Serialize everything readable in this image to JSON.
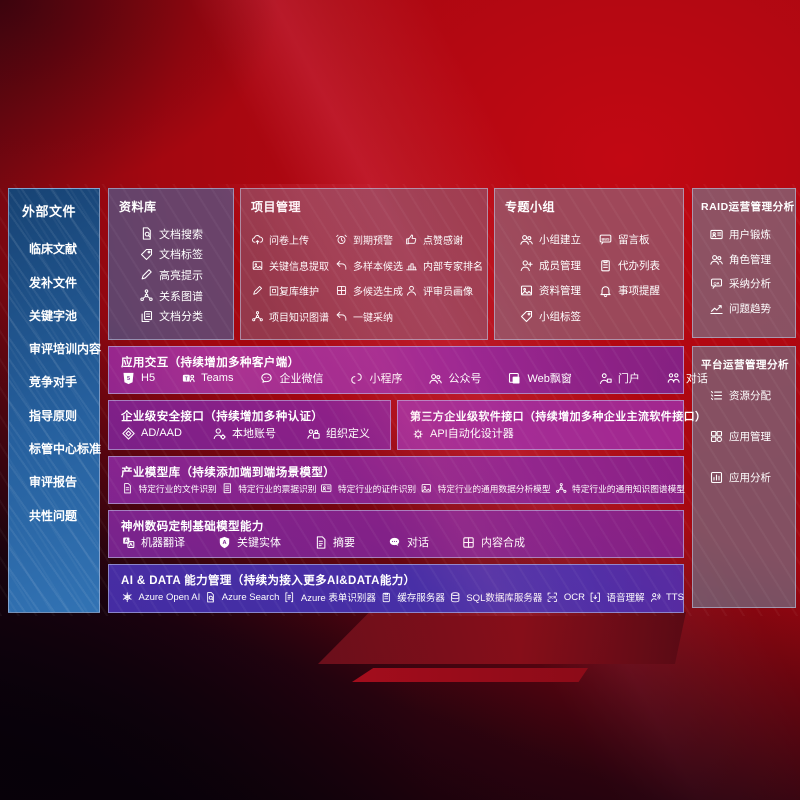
{
  "colors": {
    "screen_red": "#b5060f",
    "sidebar_blue": "#26609e",
    "repo_blue": "#3e70ac",
    "glass_gray": "#7d8296",
    "row_purple": "#8a2f99",
    "aidata_indigo": "#4a3198",
    "text": "#ffffff"
  },
  "sidebar": {
    "title": "外部文件",
    "items": [
      "临床文献",
      "发补文件",
      "关键字池",
      "审评培训内容",
      "竞争对手",
      "指导原则",
      "标管中心标准",
      "审评报告",
      "共性问题"
    ]
  },
  "panels": {
    "repository": {
      "title": "资料库",
      "items": [
        {
          "icon": "doc-search-icon",
          "label": "文档搜索"
        },
        {
          "icon": "tag-icon",
          "label": "文档标签"
        },
        {
          "icon": "pencil-icon",
          "label": "高亮提示"
        },
        {
          "icon": "knowledge-graph-icon",
          "label": "关系图谱"
        },
        {
          "icon": "doc-copy-icon",
          "label": "文档分类"
        }
      ]
    },
    "project": {
      "title": "项目管理",
      "items": [
        {
          "icon": "cloud-upload-icon",
          "label": "问卷上传"
        },
        {
          "icon": "alarm-icon",
          "label": "到期预警"
        },
        {
          "icon": "thumb-up-icon",
          "label": "点赞感谢"
        },
        {
          "icon": "photo-icon",
          "label": "关键信息提取"
        },
        {
          "icon": "reply-arrow-icon",
          "label": "多样本候选"
        },
        {
          "icon": "podium-icon",
          "label": "内部专家排名"
        },
        {
          "icon": "pencil-icon",
          "label": "回复库维护"
        },
        {
          "icon": "content-grid-icon",
          "label": "多候选生成"
        },
        {
          "icon": "person-icon",
          "label": "评审员画像"
        },
        {
          "icon": "knowledge-graph-icon",
          "label": "项目知识图谱"
        },
        {
          "icon": "reply-arrow-icon",
          "label": "一键采纳"
        }
      ]
    },
    "group": {
      "title": "专题小组",
      "items": [
        {
          "icon": "people-icon",
          "label": "小组建立"
        },
        {
          "icon": "bbs-icon",
          "label": "留言板"
        },
        {
          "icon": "person-add-icon",
          "label": "成员管理"
        },
        {
          "icon": "clipboard-icon",
          "label": "代办列表"
        },
        {
          "icon": "photo-icon",
          "label": "资料管理"
        },
        {
          "icon": "bell-icon",
          "label": "事项提醒"
        },
        {
          "icon": "tag-icon",
          "label": "小组标签"
        }
      ]
    },
    "raid": {
      "title": "RAID运营管理分析",
      "items": [
        {
          "icon": "id-card-icon",
          "label": "用户锻炼"
        },
        {
          "icon": "people-icon",
          "label": "角色管理"
        },
        {
          "icon": "qa-chat-icon",
          "label": "采纳分析"
        },
        {
          "icon": "trend-chart-icon",
          "label": "问题趋势"
        }
      ]
    },
    "platform": {
      "title": "平台运营管理分析",
      "items": [
        {
          "icon": "list-icon",
          "label": "资源分配"
        },
        {
          "icon": "apps-grid-icon",
          "label": "应用管理"
        },
        {
          "icon": "app-chart-icon",
          "label": "应用分析"
        }
      ]
    }
  },
  "rows": {
    "interaction": {
      "title": "应用交互（持续增加多种客户端）",
      "items": [
        {
          "icon": "h5-icon",
          "label": "H5"
        },
        {
          "icon": "teams-icon",
          "label": "Teams"
        },
        {
          "icon": "wechat-icon",
          "label": "企业微信"
        },
        {
          "icon": "miniprogram-icon",
          "label": "小程序"
        },
        {
          "icon": "people-icon",
          "label": "公众号"
        },
        {
          "icon": "browser-window-icon",
          "label": "Web飘窗"
        },
        {
          "icon": "portal-icon",
          "label": "门户"
        },
        {
          "icon": "dialog-people-icon",
          "label": "对话"
        }
      ]
    },
    "security": {
      "title": "企业级安全接口（持续增加多种认证）",
      "items": [
        {
          "icon": "ad-diamond-icon",
          "label": "AD/AAD"
        },
        {
          "icon": "person-gear-icon",
          "label": "本地账号"
        },
        {
          "icon": "org-people-icon",
          "label": "组织定义"
        }
      ]
    },
    "thirdparty": {
      "title": "第三方企业级软件接口（持续增加多种企业主流软件接口）",
      "items": [
        {
          "icon": "api-gear-icon",
          "label": "API自动化设计器"
        }
      ]
    },
    "industry": {
      "title": "产业模型库（持续添加端到端场景模型）",
      "items": [
        {
          "icon": "doc-icon",
          "label": "特定行业的文件识别"
        },
        {
          "icon": "receipt-icon",
          "label": "特定行业的票据识别"
        },
        {
          "icon": "id-card-icon",
          "label": "特定行业的证件识别"
        },
        {
          "icon": "photo-icon",
          "label": "特定行业的通用数据分析模型"
        },
        {
          "icon": "knowledge-graph-icon",
          "label": "特定行业的通用知识图谱模型"
        }
      ]
    },
    "basemodel": {
      "title": "神州数码定制基础模型能力",
      "items": [
        {
          "icon": "translate-icon",
          "label": "机器翻译"
        },
        {
          "icon": "shield-a-icon",
          "label": "关键实体"
        },
        {
          "icon": "summary-doc-icon",
          "label": "摘要"
        },
        {
          "icon": "chat-dots-icon",
          "label": "对话"
        },
        {
          "icon": "content-grid-icon",
          "label": "内容合成"
        }
      ]
    },
    "aidata": {
      "title": "AI & DATA 能力管理（持续为接入更多AI&DATA能力）",
      "items": [
        {
          "icon": "openai-icon",
          "label": "Azure Open AI"
        },
        {
          "icon": "doc-search-icon",
          "label": "Azure Search"
        },
        {
          "icon": "form-icon",
          "label": "Azure 表单识别器"
        },
        {
          "icon": "clipboard-icon",
          "label": "缓存服务器"
        },
        {
          "icon": "database-icon",
          "label": "SQL数据库服务器"
        },
        {
          "icon": "ocr-icon",
          "label": "OCR"
        },
        {
          "icon": "speech-icon",
          "label": "语音理解"
        },
        {
          "icon": "tts-icon",
          "label": "TTS"
        }
      ]
    }
  }
}
